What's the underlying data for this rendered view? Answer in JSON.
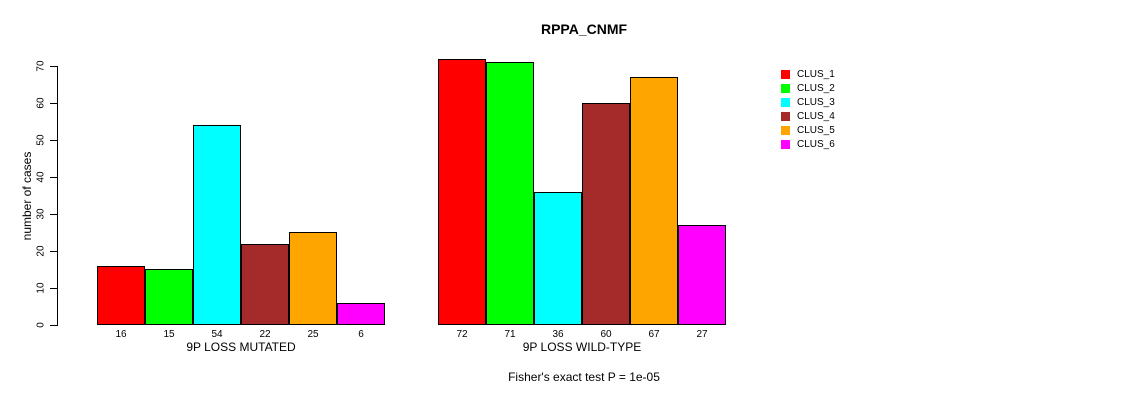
{
  "title": "RPPA_CNMF",
  "footer": "Fisher's exact test P = 1e-05",
  "chart_data": {
    "type": "bar",
    "title": "RPPA_CNMF",
    "xlabel": "",
    "ylabel": "number of cases",
    "ylim": [
      0,
      70
    ],
    "yticks": [
      0,
      10,
      20,
      30,
      40,
      50,
      60,
      70
    ],
    "grid": false,
    "legend_position": "right",
    "annotation": "Fisher's exact test P = 1e-05",
    "categories": [
      "CLUS_1",
      "CLUS_2",
      "CLUS_3",
      "CLUS_4",
      "CLUS_5",
      "CLUS_6"
    ],
    "series_colors": [
      "#FF0000",
      "#00FF00",
      "#00FFFF",
      "#A52A2A",
      "#FFA500",
      "#FF00FF"
    ],
    "groups": [
      {
        "label": "9P LOSS MUTATED",
        "values": [
          16,
          15,
          54,
          22,
          25,
          6
        ],
        "bar_labels": [
          "16",
          "15",
          "54",
          "22",
          "25",
          "6"
        ]
      },
      {
        "label": "9P LOSS WILD-TYPE",
        "values": [
          72,
          71,
          36,
          60,
          67,
          27
        ],
        "bar_labels": [
          "72",
          "71",
          "36",
          "60",
          "67",
          "27"
        ]
      }
    ]
  },
  "legend": {
    "entries": [
      {
        "label": "CLUS_1",
        "color": "#FF0000"
      },
      {
        "label": "CLUS_2",
        "color": "#00FF00"
      },
      {
        "label": "CLUS_3",
        "color": "#00FFFF"
      },
      {
        "label": "CLUS_4",
        "color": "#A52A2A"
      },
      {
        "label": "CLUS_5",
        "color": "#FFA500"
      },
      {
        "label": "CLUS_6",
        "color": "#FF00FF"
      }
    ]
  }
}
